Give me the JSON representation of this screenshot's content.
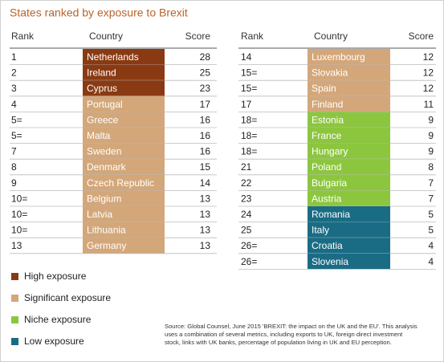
{
  "title": "States ranked by exposure to Brexit",
  "tables": [
    {
      "headers": [
        "Rank",
        "Country",
        "Score"
      ],
      "rows": [
        [
          "1",
          "Netherlands",
          28,
          "#8a3a12"
        ],
        [
          "2",
          "Ireland",
          25,
          "#8a3a12"
        ],
        [
          "3",
          "Cyprus",
          23,
          "#8a3a12"
        ],
        [
          "4",
          "Portugal",
          17,
          "#d3a77a"
        ],
        [
          "5=",
          "Greece",
          16,
          "#d3a77a"
        ],
        [
          "5=",
          "Malta",
          16,
          "#d3a77a"
        ],
        [
          "7",
          "Sweden",
          16,
          "#d3a77a"
        ],
        [
          "8",
          "Denmark",
          15,
          "#d3a77a"
        ],
        [
          "9",
          "Czech Republic",
          14,
          "#d3a77a"
        ],
        [
          "10=",
          "Belgium",
          13,
          "#d3a77a"
        ],
        [
          "10=",
          "Latvia",
          13,
          "#d3a77a"
        ],
        [
          "10=",
          "Lithuania",
          13,
          "#d3a77a"
        ],
        [
          "13",
          "Germany",
          13,
          "#d3a77a"
        ]
      ]
    },
    {
      "headers": [
        "Rank",
        "Country",
        "Score"
      ],
      "rows": [
        [
          "14",
          "Luxembourg",
          12,
          "#d3a77a"
        ],
        [
          "15=",
          "Slovakia",
          12,
          "#d3a77a"
        ],
        [
          "15=",
          "Spain",
          12,
          "#d3a77a"
        ],
        [
          "17",
          "Finland",
          11,
          "#d3a77a"
        ],
        [
          "18=",
          "Estonia",
          9,
          "#8cc63f"
        ],
        [
          "18=",
          "France",
          9,
          "#8cc63f"
        ],
        [
          "18=",
          "Hungary",
          9,
          "#8cc63f"
        ],
        [
          "21",
          "Poland",
          8,
          "#8cc63f"
        ],
        [
          "22",
          "Bulgaria",
          7,
          "#8cc63f"
        ],
        [
          "23",
          "Austria",
          7,
          "#8cc63f"
        ],
        [
          "24",
          "Romania",
          5,
          "#1a6c84"
        ],
        [
          "25",
          "Italy",
          5,
          "#1a6c84"
        ],
        [
          "26=",
          "Croatia",
          4,
          "#1a6c84"
        ],
        [
          "26=",
          "Slovenia",
          4,
          "#1a6c84"
        ]
      ]
    }
  ],
  "legend": [
    {
      "label": "High exposure",
      "color": "#8a3a12"
    },
    {
      "label": "Significant exposure",
      "color": "#d3a77a"
    },
    {
      "label": "Niche exposure",
      "color": "#8cc63f"
    },
    {
      "label": "Low exposure",
      "color": "#1a6c84"
    }
  ],
  "source": [
    "Source: Global Counsel, June 2015 'BREXIT: the impact on the UK and the EU'. This analysis",
    "uses a combination of several metrics, including exports to UK, foreign direct investment",
    "stock, links with UK banks, percentage of population living in UK and EU perception."
  ]
}
